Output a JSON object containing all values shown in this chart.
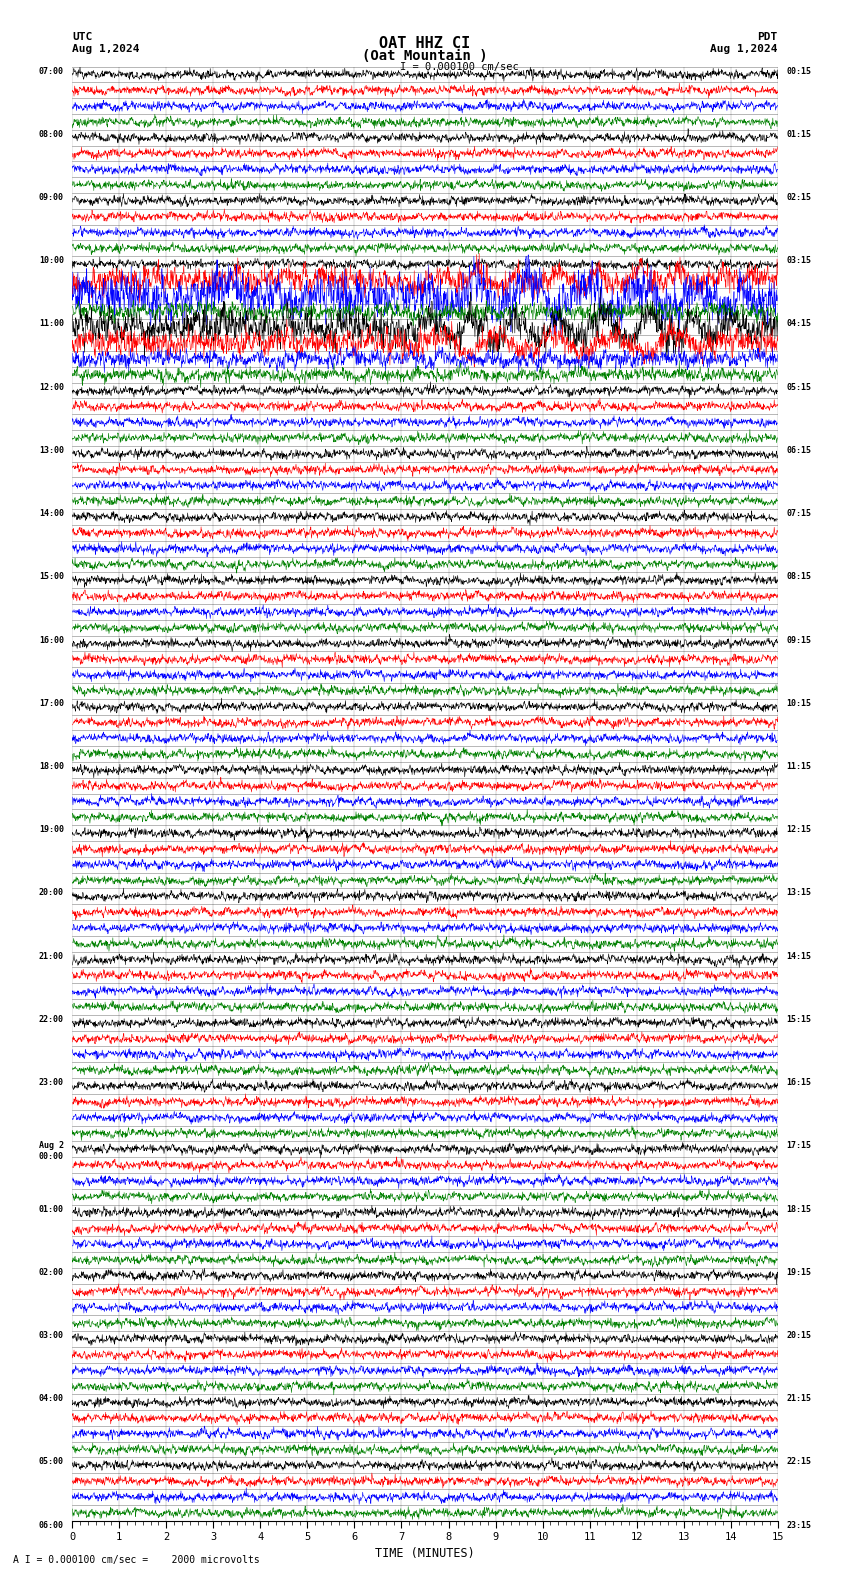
{
  "title_line1": "OAT HHZ CI",
  "title_line2": "(Oat Mountain )",
  "scale_label": "I = 0.000100 cm/sec",
  "bottom_label": "A I = 0.000100 cm/sec =    2000 microvolts",
  "utc_label": "UTC",
  "date_left": "Aug 1,2024",
  "date_right": "Aug 1,2024",
  "pdt_label": "PDT",
  "xlabel": "TIME (MINUTES)",
  "xlim": [
    0,
    15
  ],
  "xticks": [
    0,
    1,
    2,
    3,
    4,
    5,
    6,
    7,
    8,
    9,
    10,
    11,
    12,
    13,
    14,
    15
  ],
  "background_color": "#ffffff",
  "trace_colors": [
    "black",
    "red",
    "blue",
    "green"
  ],
  "num_rows": 92,
  "fig_width": 8.5,
  "fig_height": 15.84,
  "left_times": [
    "07:00",
    "",
    "",
    "",
    "08:00",
    "",
    "",
    "",
    "09:00",
    "",
    "",
    "",
    "10:00",
    "",
    "",
    "",
    "11:00",
    "",
    "",
    "",
    "12:00",
    "",
    "",
    "",
    "13:00",
    "",
    "",
    "",
    "14:00",
    "",
    "",
    "",
    "15:00",
    "",
    "",
    "",
    "16:00",
    "",
    "",
    "",
    "17:00",
    "",
    "",
    "",
    "18:00",
    "",
    "",
    "",
    "19:00",
    "",
    "",
    "",
    "20:00",
    "",
    "",
    "",
    "21:00",
    "",
    "",
    "",
    "22:00",
    "",
    "",
    "",
    "23:00",
    "",
    "",
    "",
    "Aug 2\n00:00",
    "",
    "",
    "",
    "01:00",
    "",
    "",
    "",
    "02:00",
    "",
    "",
    "",
    "03:00",
    "",
    "",
    "",
    "04:00",
    "",
    "",
    "",
    "05:00",
    "",
    "",
    "",
    "06:00",
    "",
    "",
    ""
  ],
  "right_times": [
    "00:15",
    "",
    "",
    "",
    "01:15",
    "",
    "",
    "",
    "02:15",
    "",
    "",
    "",
    "03:15",
    "",
    "",
    "",
    "04:15",
    "",
    "",
    "",
    "05:15",
    "",
    "",
    "",
    "06:15",
    "",
    "",
    "",
    "07:15",
    "",
    "",
    "",
    "08:15",
    "",
    "",
    "",
    "09:15",
    "",
    "",
    "",
    "10:15",
    "",
    "",
    "",
    "11:15",
    "",
    "",
    "",
    "12:15",
    "",
    "",
    "",
    "13:15",
    "",
    "",
    "",
    "14:15",
    "",
    "",
    "",
    "15:15",
    "",
    "",
    "",
    "16:15",
    "",
    "",
    "",
    "17:15",
    "",
    "",
    "",
    "18:15",
    "",
    "",
    "",
    "19:15",
    "",
    "",
    "",
    "20:15",
    "",
    "",
    "",
    "21:15",
    "",
    "",
    "",
    "22:15",
    "",
    "",
    "",
    "23:15",
    "",
    "",
    ""
  ],
  "event_rows": [
    12,
    13,
    14,
    15,
    16,
    17,
    18,
    19
  ],
  "event_amplitude_scale": [
    1.0,
    3.0,
    5.0,
    2.0,
    4.0,
    3.0,
    2.0,
    1.5
  ]
}
